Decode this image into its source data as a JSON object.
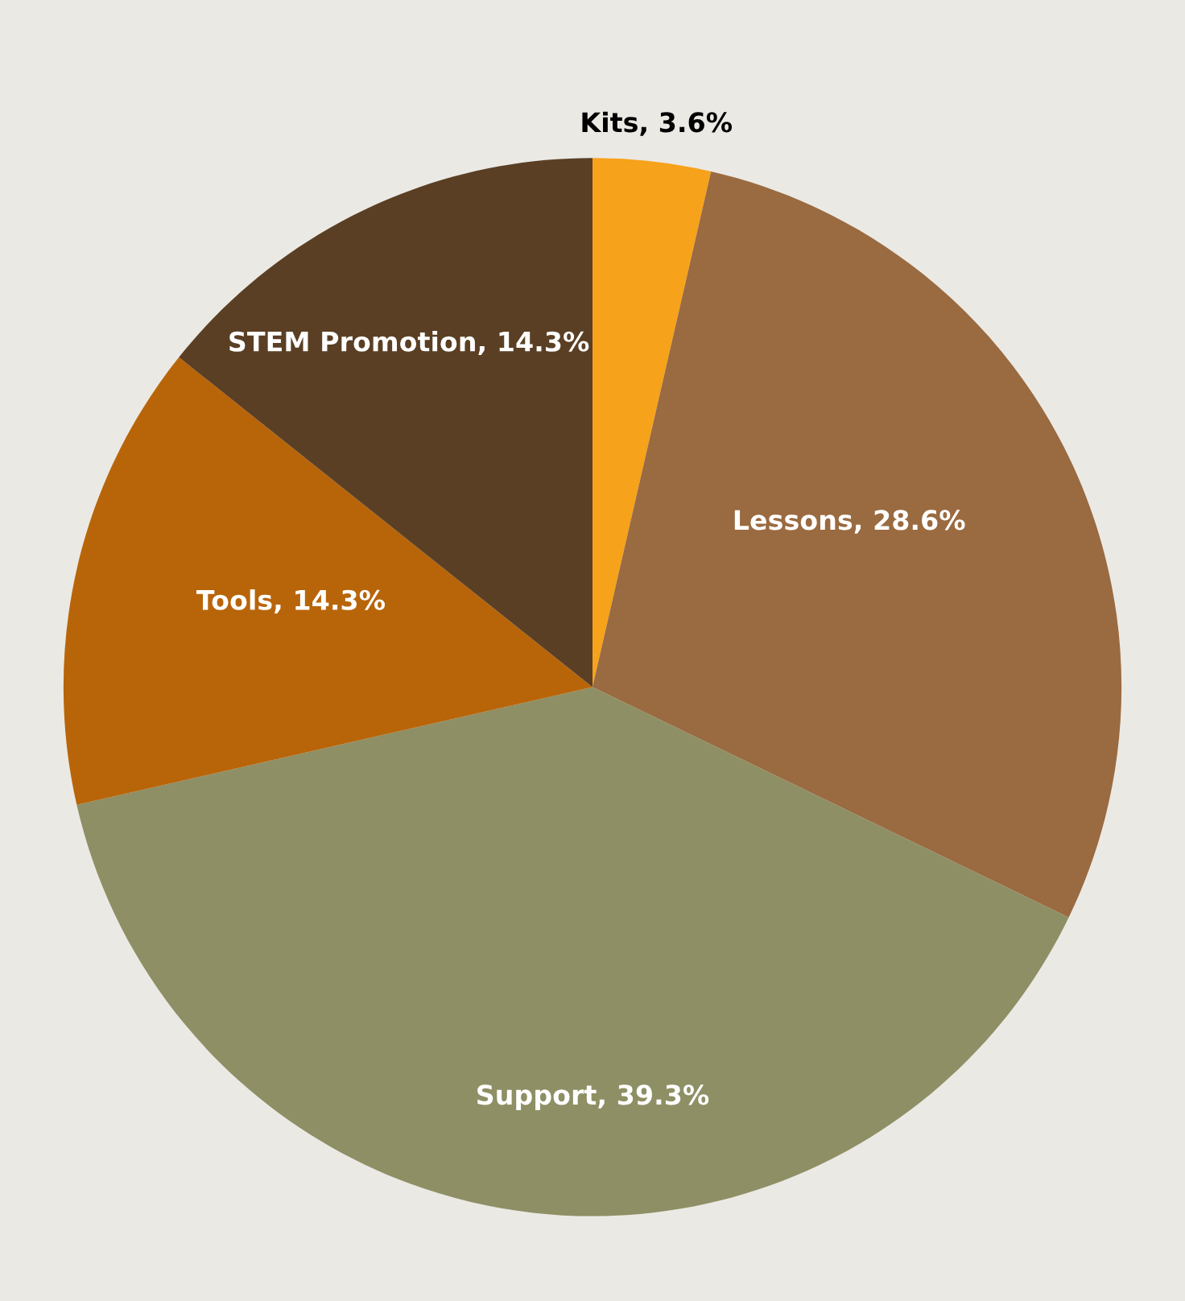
{
  "chart_data": {
    "type": "pie",
    "categories": [
      "Kits",
      "Lessons",
      "Support",
      "Tools",
      "STEM Promotion"
    ],
    "values": [
      3.6,
      28.6,
      39.3,
      14.3,
      14.3
    ],
    "colors": [
      "#f7a21b",
      "#9a6a40",
      "#8e8f65",
      "#b8650a",
      "#5a3f24"
    ],
    "value_labels": [
      "3.6%",
      "28.6%",
      "39.3%",
      "14.3%",
      "14.3%"
    ]
  }
}
